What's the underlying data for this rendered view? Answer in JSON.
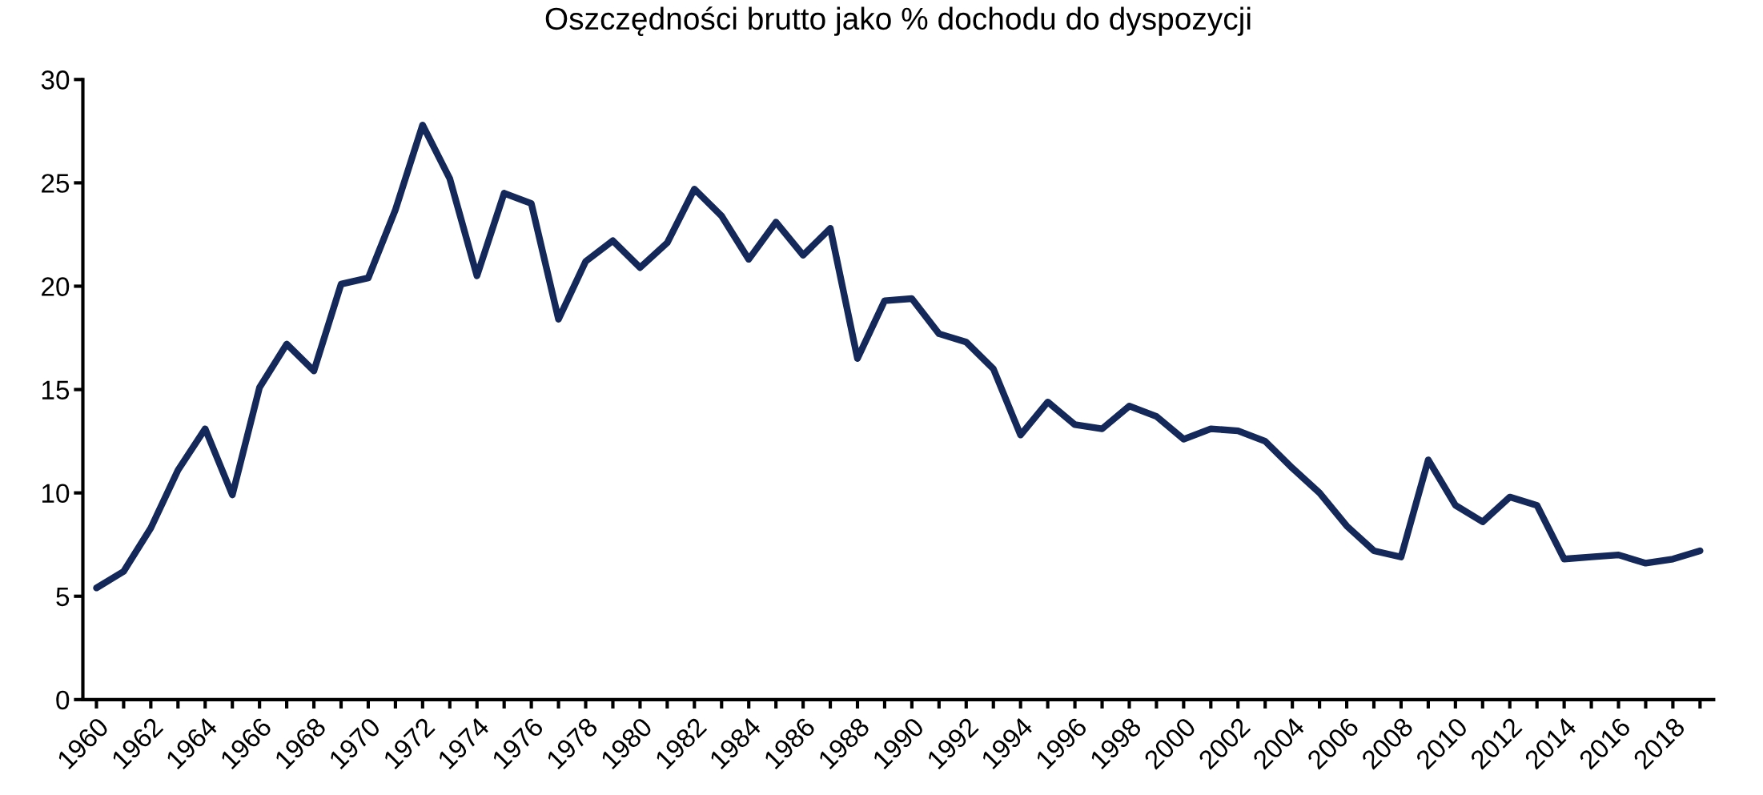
{
  "chart_data": {
    "type": "line",
    "title": "Oszczędności brutto jako % dochodu do dyspozycji",
    "categories": [
      "1960",
      null,
      "1962",
      null,
      "1964",
      null,
      "1966",
      null,
      "1968",
      null,
      "1970",
      null,
      "1972",
      null,
      "1974",
      null,
      "1976",
      null,
      "1978",
      null,
      "1980",
      null,
      "1982",
      null,
      "1984",
      null,
      "1986",
      null,
      "1988",
      null,
      "1990",
      null,
      "1992",
      null,
      "1994",
      null,
      "1996",
      null,
      "1998",
      null,
      "2000",
      null,
      "2002",
      null,
      "2004",
      null,
      "2006",
      null,
      "2008",
      null,
      "2010",
      null,
      "2012",
      null,
      "2014",
      null,
      "2016",
      null,
      "2018",
      null
    ],
    "series": [
      {
        "color": "#14285a",
        "values": [
          5.4,
          6.2,
          8.3,
          11.1,
          13.1,
          9.9,
          15.1,
          17.2,
          15.9,
          20.1,
          20.4,
          23.7,
          27.8,
          25.2,
          20.5,
          24.5,
          24.0,
          18.4,
          21.2,
          22.2,
          20.9,
          22.1,
          24.7,
          23.4,
          21.3,
          23.1,
          21.5,
          22.8,
          16.5,
          19.3,
          19.4,
          17.7,
          17.3,
          16.0,
          12.8,
          14.4,
          13.3,
          13.1,
          14.2,
          13.7,
          12.6,
          13.1,
          13.0,
          12.5,
          11.2,
          10.0,
          8.4,
          7.2,
          6.9,
          11.6,
          9.4,
          8.6,
          9.8,
          9.4,
          6.8,
          6.9,
          7.0,
          6.6,
          6.8,
          7.2
        ]
      }
    ],
    "ylim": [
      0,
      30
    ],
    "yticks": [
      0,
      5,
      10,
      15,
      20,
      25,
      30
    ],
    "grid": false,
    "legend": false,
    "marker": "none",
    "line_style": "solid"
  }
}
